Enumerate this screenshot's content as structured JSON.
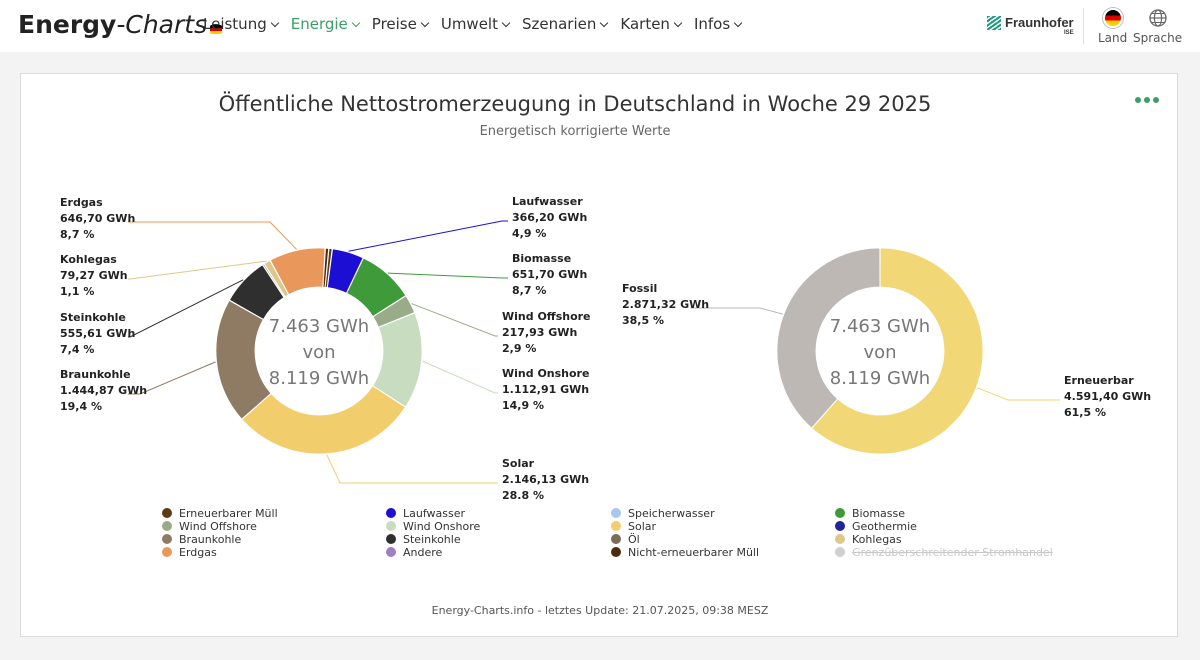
{
  "header": {
    "logo_bold": "Energy",
    "logo_italic": "-Charts",
    "nav": [
      {
        "label": "Leistung",
        "active": false
      },
      {
        "label": "Energie",
        "active": true
      },
      {
        "label": "Preise",
        "active": false
      },
      {
        "label": "Umwelt",
        "active": false
      },
      {
        "label": "Szenarien",
        "active": false
      },
      {
        "label": "Karten",
        "active": false
      },
      {
        "label": "Infos",
        "active": false
      }
    ],
    "partner": "Fraunhofer",
    "partner_sub": "ISE",
    "country_label": "Land",
    "language_label": "Sprache"
  },
  "chart_data": [
    {
      "type": "pie",
      "variant": "donut",
      "title": "Öffentliche Nettostromerzeugung in Deutschland in Woche 29 2025",
      "subtitle": "Energetisch korrigierte Werte",
      "center": [
        "7.463 GWh",
        "von",
        "8.119 GWh"
      ],
      "slices": [
        {
          "name": "Laufwasser",
          "value": 366.2,
          "value_label": "366,20 GWh",
          "percent_label": "4,9 %",
          "color": "#1c0fd3",
          "labeled": true
        },
        {
          "name": "Biomasse",
          "value": 651.7,
          "value_label": "651,70 GWh",
          "percent_label": "8,7 %",
          "color": "#3f9a3a",
          "labeled": true
        },
        {
          "name": "Wind Offshore",
          "value": 217.93,
          "value_label": "217,93 GWh",
          "percent_label": "2,9 %",
          "color": "#9aab8a",
          "labeled": true
        },
        {
          "name": "Wind Onshore",
          "value": 1112.91,
          "value_label": "1.112,91 GWh",
          "percent_label": "14,9 %",
          "color": "#c8dcbf",
          "labeled": true
        },
        {
          "name": "Solar",
          "value": 2146.13,
          "value_label": "2.146,13 GWh",
          "percent_label": "28.8 %",
          "color": "#f2cd6c",
          "labeled": true
        },
        {
          "name": "Braunkohle",
          "value": 1444.87,
          "value_label": "1.444,87 GWh",
          "percent_label": "19,4 %",
          "color": "#8f7b63",
          "labeled": true
        },
        {
          "name": "Steinkohle",
          "value": 555.61,
          "value_label": "555,61 GWh",
          "percent_label": "7,4 %",
          "color": "#2f2f2f",
          "labeled": true
        },
        {
          "name": "Öl",
          "value": 20,
          "value_label": "",
          "percent_label": "",
          "color": "#7a6c58",
          "labeled": false
        },
        {
          "name": "Kohlegas",
          "value": 79.27,
          "value_label": "79,27 GWh",
          "percent_label": "1,1 %",
          "color": "#dfc78a",
          "labeled": true
        },
        {
          "name": "Erdgas",
          "value": 646.7,
          "value_label": "646,70 GWh",
          "percent_label": "8,7 %",
          "color": "#e9975a",
          "labeled": true
        },
        {
          "name": "Nicht-erneuerbarer Müll",
          "value": 40,
          "value_label": "",
          "percent_label": "",
          "color": "#4d2b0d",
          "labeled": false
        },
        {
          "name": "Erneuerbarer Müll",
          "value": 40,
          "value_label": "",
          "percent_label": "",
          "color": "#5c3a13",
          "labeled": false
        }
      ]
    },
    {
      "type": "pie",
      "variant": "donut",
      "center": [
        "7.463 GWh",
        "von",
        "8.119 GWh"
      ],
      "slices": [
        {
          "name": "Erneuerbar",
          "value": 4591.4,
          "value_label": "4.591,40 GWh",
          "percent_label": "61,5 %",
          "color": "#f2d776",
          "labeled": true
        },
        {
          "name": "Fossil",
          "value": 2871.32,
          "value_label": "2.871,32 GWh",
          "percent_label": "38,5 %",
          "color": "#bdb8b4",
          "labeled": true
        }
      ]
    }
  ],
  "legend": [
    {
      "label": "Erneuerbarer Müll",
      "color": "#5c3a13",
      "enabled": true
    },
    {
      "label": "Laufwasser",
      "color": "#1c0fd3",
      "enabled": true
    },
    {
      "label": "Speicherwasser",
      "color": "#a9c6ef",
      "enabled": true
    },
    {
      "label": "Biomasse",
      "color": "#3f9a3a",
      "enabled": true
    },
    {
      "label": "Wind Offshore",
      "color": "#9aab8a",
      "enabled": true
    },
    {
      "label": "Wind Onshore",
      "color": "#c8dcbf",
      "enabled": true
    },
    {
      "label": "Solar",
      "color": "#f2cd6c",
      "enabled": true
    },
    {
      "label": "Geothermie",
      "color": "#23239a",
      "enabled": true
    },
    {
      "label": "Braunkohle",
      "color": "#8f7b63",
      "enabled": true
    },
    {
      "label": "Steinkohle",
      "color": "#2f2f2f",
      "enabled": true
    },
    {
      "label": "Öl",
      "color": "#7a6c58",
      "enabled": true
    },
    {
      "label": "Kohlegas",
      "color": "#dfc78a",
      "enabled": true
    },
    {
      "label": "Erdgas",
      "color": "#e9975a",
      "enabled": true
    },
    {
      "label": "Andere",
      "color": "#9a82c4",
      "enabled": true
    },
    {
      "label": "Nicht-erneuerbarer Müll",
      "color": "#4d2b0d",
      "enabled": true
    },
    {
      "label": "Grenzüberschreitender Stromhandel",
      "color": "#cfcfcf",
      "enabled": false
    }
  ],
  "footer": "Energy-Charts.info - letztes Update: 21.07.2025, 09:38 MESZ"
}
